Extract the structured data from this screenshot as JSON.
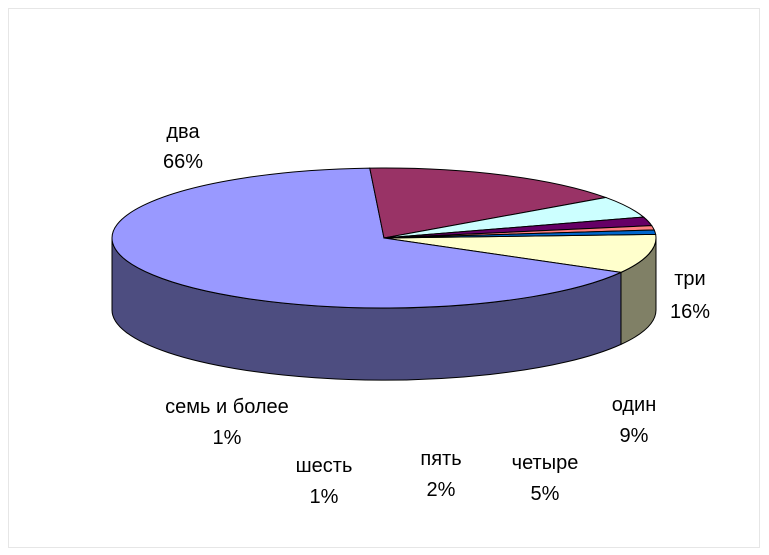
{
  "chart_data": {
    "type": "pie",
    "style": "3d",
    "title": "",
    "legend": "none",
    "data_labels": "category name and percent",
    "slices": [
      {
        "label": "один",
        "value": 9,
        "display": "9%",
        "color": "#ffffcc"
      },
      {
        "label": "два",
        "value": 66,
        "display": "66%",
        "color": "#9999ff"
      },
      {
        "label": "три",
        "value": 16,
        "display": "16%",
        "color": "#993366"
      },
      {
        "label": "четыре",
        "value": 5,
        "display": "5%",
        "color": "#ccffff"
      },
      {
        "label": "пять",
        "value": 2,
        "display": "2%",
        "color": "#660066"
      },
      {
        "label": "шесть",
        "value": 1,
        "display": "1%",
        "color": "#ff8080"
      },
      {
        "label": "семь и более",
        "value": 1,
        "display": "1%",
        "color": "#0066cc"
      }
    ]
  }
}
